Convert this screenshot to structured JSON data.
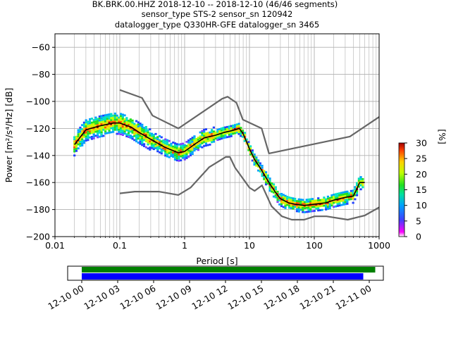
{
  "title_lines": [
    "BK.BRK.00.HHZ   2018-12-10 -- 2018-12-10  (46/46 segments)",
    "sensor_type STS-2 sensor_sn 120942",
    "datalogger_type Q330HR-GFE datalogger_sn 3465"
  ],
  "colorbar": {
    "label": "[%]",
    "ticks": [
      "0",
      "5",
      "10",
      "15",
      "20",
      "25",
      "30"
    ],
    "range": [
      0,
      30
    ]
  },
  "timeline": {
    "ticks": [
      "12-10 00",
      "12-10 03",
      "12-10 06",
      "12-10 09",
      "12-10 12",
      "12-10 15",
      "12-10 18",
      "12-10 21",
      "12-11 00"
    ],
    "green_bar": {
      "start_hour": 0.0,
      "end_hour": 24.5,
      "color": "#008000"
    },
    "blue_bar": {
      "start_hour": 0.0,
      "end_hour": 23.5,
      "color": "#0000ff"
    }
  },
  "chart_data": {
    "type": "line",
    "xlabel": "Period [s]",
    "ylabel": "Power [m²/s⁴/Hz] [dB]",
    "xscale": "log",
    "xlim": [
      0.01,
      1000
    ],
    "ylim": [
      -200,
      -50
    ],
    "xticks": [
      {
        "value": 0.01,
        "label": "0.01"
      },
      {
        "value": 0.1,
        "label": "0.1"
      },
      {
        "value": 1,
        "label": "1"
      },
      {
        "value": 10,
        "label": "10"
      },
      {
        "value": 100,
        "label": "100"
      },
      {
        "value": 1000,
        "label": "1000"
      }
    ],
    "yticks": [
      -200,
      -180,
      -160,
      -140,
      -120,
      -100,
      -80,
      -60
    ],
    "grid": true,
    "series": [
      {
        "role": "mean",
        "color": "#000000",
        "x": [
          0.02,
          0.03,
          0.05,
          0.08,
          0.1,
          0.15,
          0.2,
          0.3,
          0.5,
          0.8,
          1.0,
          1.5,
          2.0,
          3.0,
          4.0,
          5.0,
          6.0,
          7.0,
          8.0,
          10,
          12,
          15,
          20,
          25,
          30,
          40,
          50,
          70,
          100,
          150,
          200,
          300,
          400,
          450,
          500,
          600
        ],
        "y": [
          -132,
          -121,
          -118,
          -116,
          -116,
          -119,
          -123,
          -128,
          -134,
          -138,
          -137,
          -131,
          -127,
          -125,
          -123,
          -122,
          -121,
          -120,
          -124,
          -135,
          -143,
          -150,
          -160,
          -167,
          -172,
          -175,
          -176,
          -177,
          -176,
          -175,
          -173,
          -171,
          -170,
          -165,
          -160,
          -160
        ]
      },
      {
        "role": "noise-model-high",
        "color": "#666666",
        "x": [
          0.1,
          0.22,
          0.32,
          0.8,
          3.8,
          4.6,
          6.3,
          7.9,
          15.4,
          20,
          354,
          1000
        ],
        "y": [
          -91.5,
          -97.4,
          -110.5,
          -120,
          -98,
          -96.5,
          -101,
          -113.5,
          -120,
          -138.5,
          -126,
          -111.5
        ]
      },
      {
        "role": "noise-model-low",
        "color": "#666666",
        "x": [
          0.1,
          0.17,
          0.4,
          0.8,
          1.24,
          2.4,
          4.3,
          5.0,
          6.0,
          10,
          12,
          15.6,
          21.9,
          31.6,
          45,
          70,
          101,
          154,
          328,
          600,
          1000
        ],
        "y": [
          -168,
          -166.7,
          -166.7,
          -169.2,
          -163.7,
          -148.6,
          -141.1,
          -141.1,
          -149,
          -163.8,
          -166.2,
          -162.1,
          -177.5,
          -185,
          -187.5,
          -187.5,
          -185,
          -185,
          -187.5,
          -184.4,
          -178.4
        ]
      }
    ]
  }
}
